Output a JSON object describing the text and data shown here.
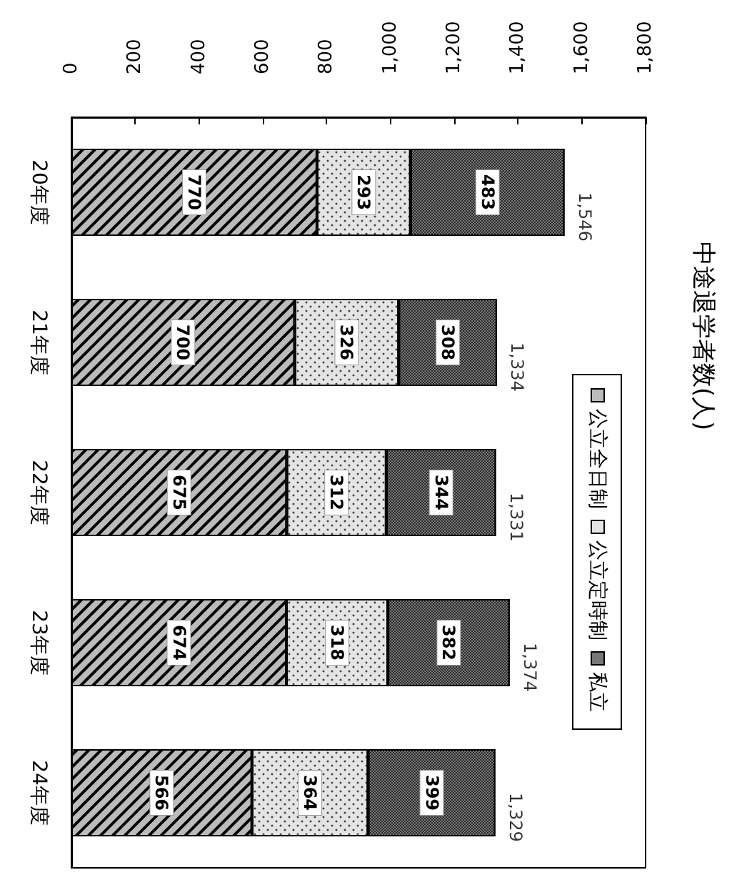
{
  "chart_data": {
    "type": "bar",
    "orientation": "horizontal",
    "title": "中途退学者数(人)",
    "categories": [
      "20年度",
      "21年度",
      "22年度",
      "23年度",
      "24年度"
    ],
    "series": [
      {
        "name": "公立全日制",
        "color": "#bbbbbb",
        "values": [
          770,
          700,
          675,
          674,
          566
        ]
      },
      {
        "name": "公立定時制",
        "color": "#e4e4e4",
        "values": [
          293,
          326,
          312,
          318,
          364
        ]
      },
      {
        "name": "私立",
        "color": "#777777",
        "values": [
          483,
          308,
          344,
          382,
          399
        ]
      }
    ],
    "stacked": true,
    "data_labels": true,
    "totals": [
      "1,546",
      "1,334",
      "1,331",
      "1,374",
      "1,329"
    ],
    "xlim": [
      0,
      1800
    ],
    "xticks": [
      0,
      200,
      400,
      600,
      800,
      {
        "value": 1000,
        "label": "1,000"
      },
      {
        "value": 1200,
        "label": "1,200"
      },
      {
        "value": 1400,
        "label": "1,400"
      },
      {
        "value": 1600,
        "label": "1,600"
      },
      {
        "value": 1800,
        "label": "1,800"
      }
    ],
    "grid": false,
    "legend": "right"
  }
}
